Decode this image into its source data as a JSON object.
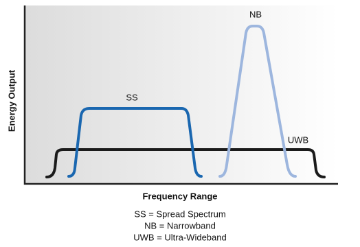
{
  "axes": {
    "y_label": "Energy Output",
    "x_label": "Frequency Range"
  },
  "curves": [
    {
      "label": "SS"
    },
    {
      "label": "NB"
    },
    {
      "label": "UWB"
    }
  ],
  "legend": [
    "SS = Spread Spectrum",
    "NB = Narrowband",
    "UWB = Ultra-Wideband"
  ]
}
